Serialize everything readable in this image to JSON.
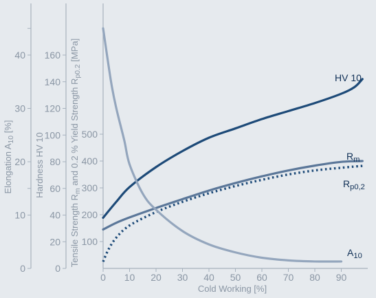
{
  "chart_data": {
    "type": "line",
    "title": "",
    "xlabel": "Cold Working [%]",
    "xlim": [
      0,
      100
    ],
    "x_ticks": [
      "0",
      "10",
      "20",
      "30",
      "40",
      "50",
      "60",
      "70",
      "80",
      "90"
    ],
    "grid": false,
    "legend": "inline labels near right end of curves",
    "y_axes": [
      {
        "id": "elongation",
        "label_parts": [
          "Elongation A",
          "10",
          " [%]"
        ],
        "ylim": [
          0,
          45
        ],
        "ticks": [
          "0",
          "10",
          "20",
          "30",
          "40"
        ]
      },
      {
        "id": "hardness",
        "label": "Hardness HV 10",
        "ylim": [
          0,
          180
        ],
        "ticks": [
          "0",
          "20",
          "40",
          "60",
          "80",
          "100",
          "120",
          "140",
          "160"
        ]
      },
      {
        "id": "strength",
        "label_parts": [
          "Tensile Strength R",
          "m",
          " and 0.2 % Yield Strength R",
          "p0.2",
          "  [MPa]"
        ],
        "ylim": [
          0,
          500
        ],
        "ticks": [
          "100",
          "200",
          "300",
          "400",
          "500"
        ]
      }
    ],
    "series": [
      {
        "name": "HV 10",
        "label_parts": [
          "HV 10"
        ],
        "axis": "hardness",
        "color": "#1d4a78",
        "style": "solid",
        "x": [
          0,
          5,
          10,
          20,
          30,
          40,
          50,
          60,
          70,
          80,
          90,
          95,
          98
        ],
        "values": [
          38,
          50,
          61,
          76,
          88,
          98,
          105,
          112,
          118,
          124,
          131,
          136,
          142
        ]
      },
      {
        "name": "Rm",
        "label_parts": [
          "R",
          "m"
        ],
        "axis": "strength",
        "color": "#5b7799",
        "style": "solid",
        "x": [
          0,
          5,
          10,
          20,
          30,
          40,
          50,
          60,
          70,
          80,
          90,
          98
        ],
        "values": [
          145,
          170,
          190,
          225,
          258,
          290,
          318,
          343,
          365,
          383,
          397,
          400
        ]
      },
      {
        "name": "Rp0,2",
        "label_parts": [
          "R",
          "p0,2"
        ],
        "axis": "strength",
        "color": "#1d4a78",
        "style": "dotted",
        "x": [
          0,
          2,
          5,
          10,
          20,
          30,
          40,
          50,
          60,
          70,
          80,
          90,
          98
        ],
        "values": [
          25,
          70,
          115,
          160,
          210,
          248,
          280,
          307,
          330,
          350,
          365,
          375,
          382
        ]
      },
      {
        "name": "A10",
        "label_parts": [
          "A",
          "10"
        ],
        "axis": "elongation",
        "color": "#94a6bd",
        "style": "solid",
        "x": [
          0,
          3,
          5,
          8,
          10,
          15,
          20,
          30,
          40,
          50,
          60,
          70,
          80,
          90
        ],
        "values": [
          45,
          35,
          30,
          24,
          19.5,
          14,
          11,
          7,
          4.5,
          3,
          2,
          1.5,
          1.3,
          1.3
        ]
      }
    ]
  }
}
